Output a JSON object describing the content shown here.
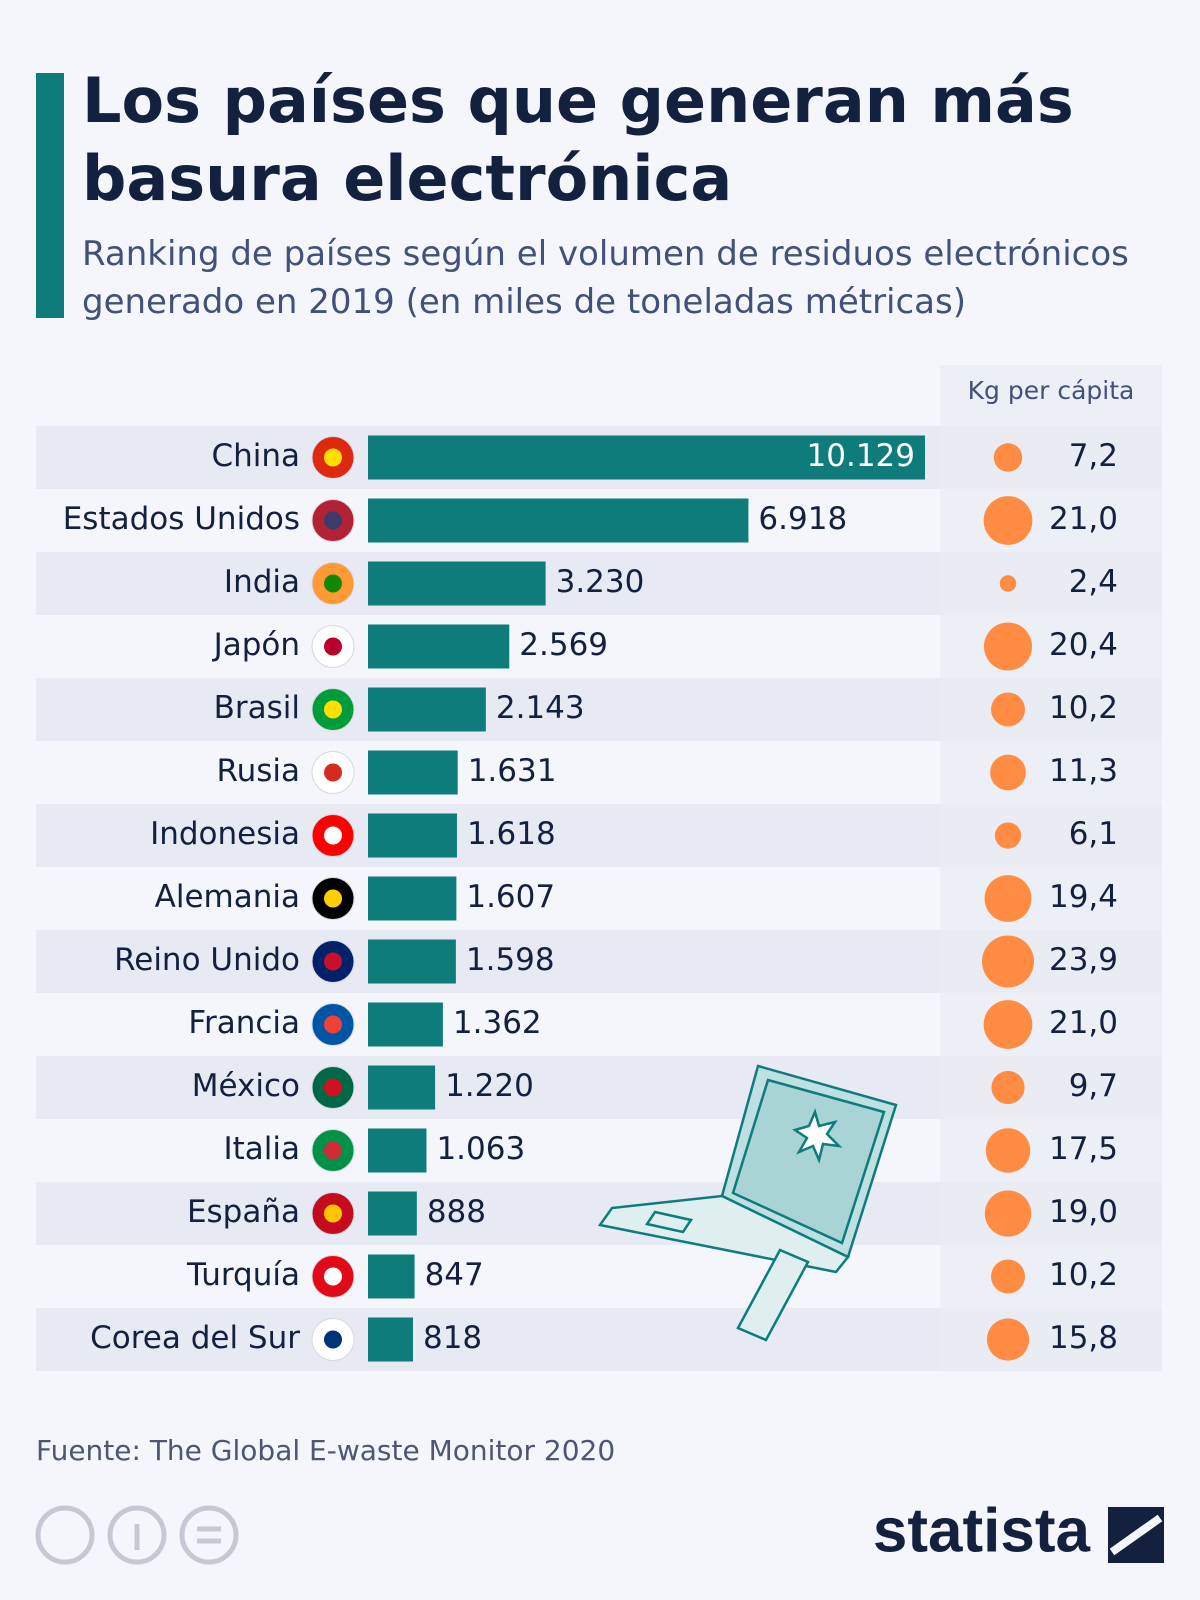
{
  "chart_data": {
    "type": "bar",
    "orientation": "horizontal",
    "title": "Los países que generan más basura electrónica",
    "subtitle": "Ranking de países según el volumen de residuos electrónicos generado en 2019 (en miles de toneladas métricas)",
    "categories": [
      "China",
      "Estados Unidos",
      "India",
      "Japón",
      "Brasil",
      "Rusia",
      "Indonesia",
      "Alemania",
      "Reino Unido",
      "Francia",
      "México",
      "Italia",
      "España",
      "Turquía",
      "Corea del Sur"
    ],
    "values": [
      10129,
      6918,
      3230,
      2569,
      2143,
      1631,
      1618,
      1607,
      1598,
      1362,
      1220,
      1063,
      888,
      847,
      818
    ],
    "value_labels": [
      "10.129",
      "6.918",
      "3.230",
      "2.569",
      "2.143",
      "1.631",
      "1.618",
      "1.607",
      "1.598",
      "1.362",
      "1.220",
      "1.063",
      "888",
      "847",
      "818"
    ],
    "color": "#0e7c7b",
    "per_capita": {
      "name": "Kg per cápita",
      "values": [
        7.2,
        21.0,
        2.4,
        20.4,
        10.2,
        11.3,
        6.1,
        19.4,
        23.9,
        21.0,
        9.7,
        17.5,
        19.0,
        10.2,
        15.8
      ],
      "value_labels": [
        "7,2",
        "21,0",
        "2,4",
        "20,4",
        "10,2",
        "11,3",
        "6,1",
        "19,4",
        "23,9",
        "21,0",
        "9,7",
        "17,5",
        "19,0",
        "10,2",
        "15,8"
      ],
      "color": "#ff8c42"
    },
    "source": "Fuente: The Global E-waste Monitor 2020",
    "logo": "statista"
  }
}
